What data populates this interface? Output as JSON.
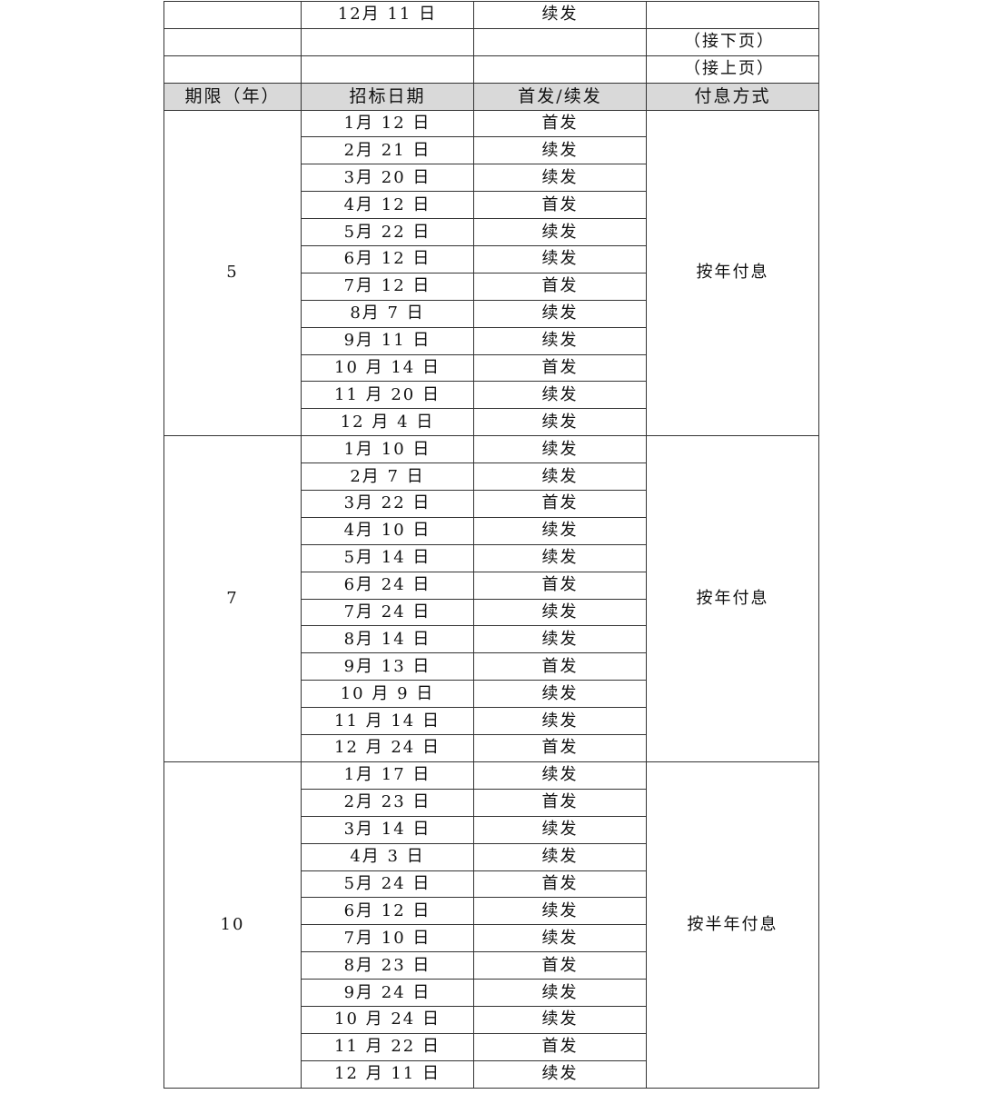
{
  "continuation_rows": [
    {
      "date": "12月 11 日",
      "type": "续发",
      "note": ""
    },
    {
      "date": "",
      "type": "",
      "note": "（接下页）"
    },
    {
      "date": "",
      "type": "",
      "note": "（接上页）"
    }
  ],
  "header": {
    "term": "期限（年）",
    "date": "招标日期",
    "type": "首发/续发",
    "interest": "付息方式"
  },
  "groups": [
    {
      "term": "5",
      "interest": "按年付息",
      "rows": [
        {
          "date": "1月 12 日",
          "type": "首发"
        },
        {
          "date": "2月 21 日",
          "type": "续发"
        },
        {
          "date": "3月 20 日",
          "type": "续发"
        },
        {
          "date": "4月 12 日",
          "type": "首发"
        },
        {
          "date": "5月 22 日",
          "type": "续发"
        },
        {
          "date": "6月 12 日",
          "type": "续发"
        },
        {
          "date": "7月 12 日",
          "type": "首发"
        },
        {
          "date": "8月 7 日",
          "type": "续发"
        },
        {
          "date": "9月 11 日",
          "type": "续发"
        },
        {
          "date": "10 月 14 日",
          "type": "首发"
        },
        {
          "date": "11 月 20 日",
          "type": "续发"
        },
        {
          "date": "12 月 4 日",
          "type": "续发"
        }
      ]
    },
    {
      "term": "7",
      "interest": "按年付息",
      "rows": [
        {
          "date": "1月 10 日",
          "type": "续发"
        },
        {
          "date": "2月 7 日",
          "type": "续发"
        },
        {
          "date": "3月 22 日",
          "type": "首发"
        },
        {
          "date": "4月 10 日",
          "type": "续发"
        },
        {
          "date": "5月 14 日",
          "type": "续发"
        },
        {
          "date": "6月 24 日",
          "type": "首发"
        },
        {
          "date": "7月 24 日",
          "type": "续发"
        },
        {
          "date": "8月 14 日",
          "type": "续发"
        },
        {
          "date": "9月 13 日",
          "type": "首发"
        },
        {
          "date": "10 月 9 日",
          "type": "续发"
        },
        {
          "date": "11 月 14 日",
          "type": "续发"
        },
        {
          "date": "12 月 24 日",
          "type": "首发"
        }
      ]
    },
    {
      "term": "10",
      "interest": "按半年付息",
      "rows": [
        {
          "date": "1月 17 日",
          "type": "续发"
        },
        {
          "date": "2月 23 日",
          "type": "首发"
        },
        {
          "date": "3月 14 日",
          "type": "续发"
        },
        {
          "date": "4月 3 日",
          "type": "续发"
        },
        {
          "date": "5月 24 日",
          "type": "首发"
        },
        {
          "date": "6月 12 日",
          "type": "续发"
        },
        {
          "date": "7月 10 日",
          "type": "续发"
        },
        {
          "date": "8月 23 日",
          "type": "首发"
        },
        {
          "date": "9月 24 日",
          "type": "续发"
        },
        {
          "date": "10 月 24 日",
          "type": "续发"
        },
        {
          "date": "11 月 22 日",
          "type": "首发"
        },
        {
          "date": "12 月 11 日",
          "type": "续发"
        }
      ]
    }
  ]
}
